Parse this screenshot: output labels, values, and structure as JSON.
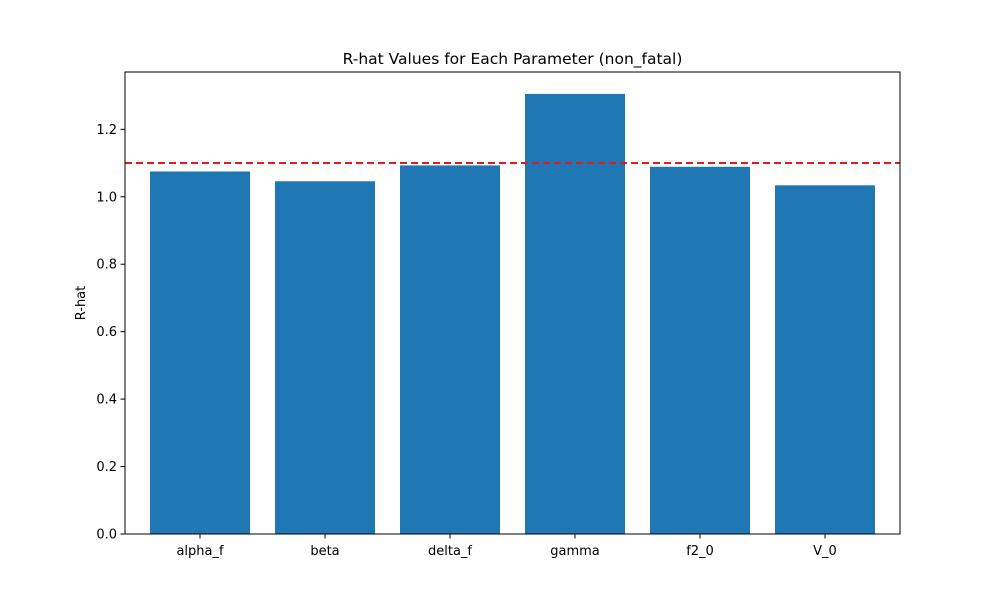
{
  "chart_data": {
    "type": "bar",
    "title": "R-hat Values for Each Parameter (non_fatal)",
    "xlabel": "",
    "ylabel": "R-hat",
    "categories": [
      "alpha_f",
      "beta",
      "delta_f",
      "gamma",
      "f2_0",
      "V_0"
    ],
    "values": [
      1.075,
      1.046,
      1.093,
      1.305,
      1.089,
      1.034
    ],
    "ylim": [
      0,
      1.37
    ],
    "yticks": [
      0.0,
      0.2,
      0.4,
      0.6,
      0.8,
      1.0,
      1.2
    ],
    "ytick_labels": [
      "0.0",
      "0.2",
      "0.4",
      "0.6",
      "0.8",
      "1.0",
      "1.2"
    ],
    "reference_line": {
      "y": 1.1,
      "style": "dashed",
      "color": "#e41a1c"
    },
    "bar_color": "#1f77b4",
    "grid": false,
    "legend": "none"
  }
}
